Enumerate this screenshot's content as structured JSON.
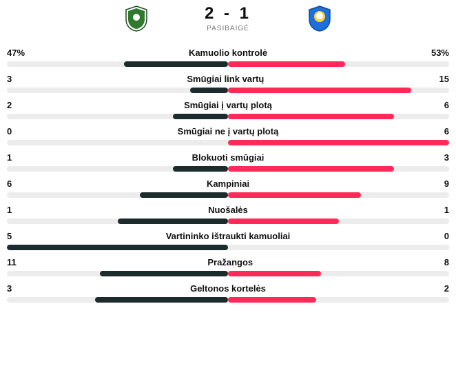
{
  "colors": {
    "track": "#ececec",
    "home_fill": "#1c2b2b",
    "away_fill": "#ff2a57",
    "text": "#111111"
  },
  "match": {
    "score": "2 - 1",
    "status": "PASIBAIGĖ",
    "home_crest": {
      "bg": "#2f7a2f",
      "border": "#1a4a1a"
    },
    "away_crest": {
      "bg": "#1e6fd8",
      "accent": "#ffd43b"
    }
  },
  "stats": [
    {
      "label": "Kamuolio kontrolė",
      "home": "47%",
      "away": "53%",
      "home_pct": 47,
      "away_pct": 53
    },
    {
      "label": "Smūgiai link vartų",
      "home": "3",
      "away": "15",
      "home_pct": 17,
      "away_pct": 83
    },
    {
      "label": "Smūgiai į vartų plotą",
      "home": "2",
      "away": "6",
      "home_pct": 25,
      "away_pct": 75
    },
    {
      "label": "Smūgiai ne į vartų plotą",
      "home": "0",
      "away": "6",
      "home_pct": 0,
      "away_pct": 100
    },
    {
      "label": "Blokuoti smūgiai",
      "home": "1",
      "away": "3",
      "home_pct": 25,
      "away_pct": 75
    },
    {
      "label": "Kampiniai",
      "home": "6",
      "away": "9",
      "home_pct": 40,
      "away_pct": 60
    },
    {
      "label": "Nuošalės",
      "home": "1",
      "away": "1",
      "home_pct": 50,
      "away_pct": 50
    },
    {
      "label": "Vartininko ištraukti kamuoliai",
      "home": "5",
      "away": "0",
      "home_pct": 100,
      "away_pct": 0
    },
    {
      "label": "Pražangos",
      "home": "11",
      "away": "8",
      "home_pct": 58,
      "away_pct": 42
    },
    {
      "label": "Geltonos kortelės",
      "home": "3",
      "away": "2",
      "home_pct": 60,
      "away_pct": 40
    }
  ]
}
